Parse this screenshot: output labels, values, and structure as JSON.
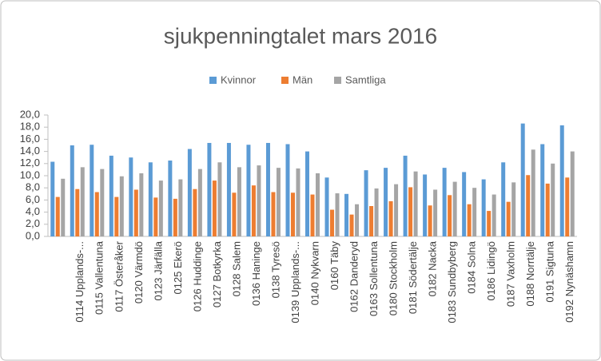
{
  "chart_data": {
    "type": "bar",
    "title": "sjukpenningtalet mars 2016",
    "categories": [
      null,
      "0114 Upplands-...",
      "0115 Vallentuna",
      "0117 Österåker",
      "0120 Värmdö",
      "0123 Järfälla",
      "0125 Ekerö",
      "0126 Huddinge",
      "0127 Botkyrka",
      "0128 Salem",
      "0136 Haninge",
      "0138 Tyresö",
      "0139 Upplands-...",
      "0140 Nykvarn",
      "0160 Täby",
      "0162 Danderyd",
      "0163 Sollentuna",
      "0180 Stockholm",
      "0181 Södertälje",
      "0182 Nacka",
      "0183 Sundbyberg",
      "0184 Solna",
      "0186 Lidingö",
      "0187 Vaxholm",
      "0188 Norrtälje",
      "0191 Sigtuna",
      "0192 Nynäshamn"
    ],
    "series": [
      {
        "name": "Kvinnor",
        "color": "#5b9bd5",
        "values": [
          12.3,
          15.0,
          15.1,
          13.3,
          13.0,
          12.2,
          12.5,
          14.4,
          15.4,
          15.4,
          15.1,
          15.4,
          15.2,
          14.0,
          9.7,
          7.0,
          10.9,
          11.3,
          13.3,
          10.2,
          11.3,
          10.6,
          9.4,
          12.2,
          18.6,
          15.2,
          18.3
        ]
      },
      {
        "name": "Män",
        "color": "#ed7d31",
        "values": [
          6.5,
          7.8,
          7.3,
          6.5,
          7.7,
          6.4,
          6.2,
          7.8,
          9.2,
          7.2,
          8.4,
          7.3,
          7.2,
          6.9,
          4.4,
          3.6,
          5.0,
          5.8,
          8.1,
          5.1,
          6.8,
          5.3,
          4.2,
          5.7,
          10.1,
          8.7,
          9.7
        ]
      },
      {
        "name": "Samtliga",
        "color": "#a5a5a5",
        "values": [
          9.5,
          11.4,
          11.1,
          9.9,
          10.4,
          9.2,
          9.4,
          11.1,
          12.2,
          11.4,
          11.7,
          11.3,
          11.2,
          10.4,
          7.1,
          5.3,
          7.9,
          8.6,
          10.7,
          7.7,
          9.0,
          8.0,
          6.9,
          8.9,
          14.3,
          12.0,
          14.0
        ]
      }
    ],
    "ylim": [
      0,
      20
    ],
    "yticks": [
      {
        "value": 0,
        "label": "0,0"
      },
      {
        "value": 2,
        "label": "2,0"
      },
      {
        "value": 4,
        "label": "4,0"
      },
      {
        "value": 6,
        "label": "6,0"
      },
      {
        "value": 8,
        "label": "8,0"
      },
      {
        "value": 10,
        "label": "10,0"
      },
      {
        "value": 12,
        "label": "12,0"
      },
      {
        "value": 14,
        "label": "14,0"
      },
      {
        "value": 16,
        "label": "16,0"
      },
      {
        "value": 18,
        "label": "18,0"
      },
      {
        "value": 20,
        "label": "20,0"
      }
    ],
    "grid": false,
    "legend": "top"
  }
}
